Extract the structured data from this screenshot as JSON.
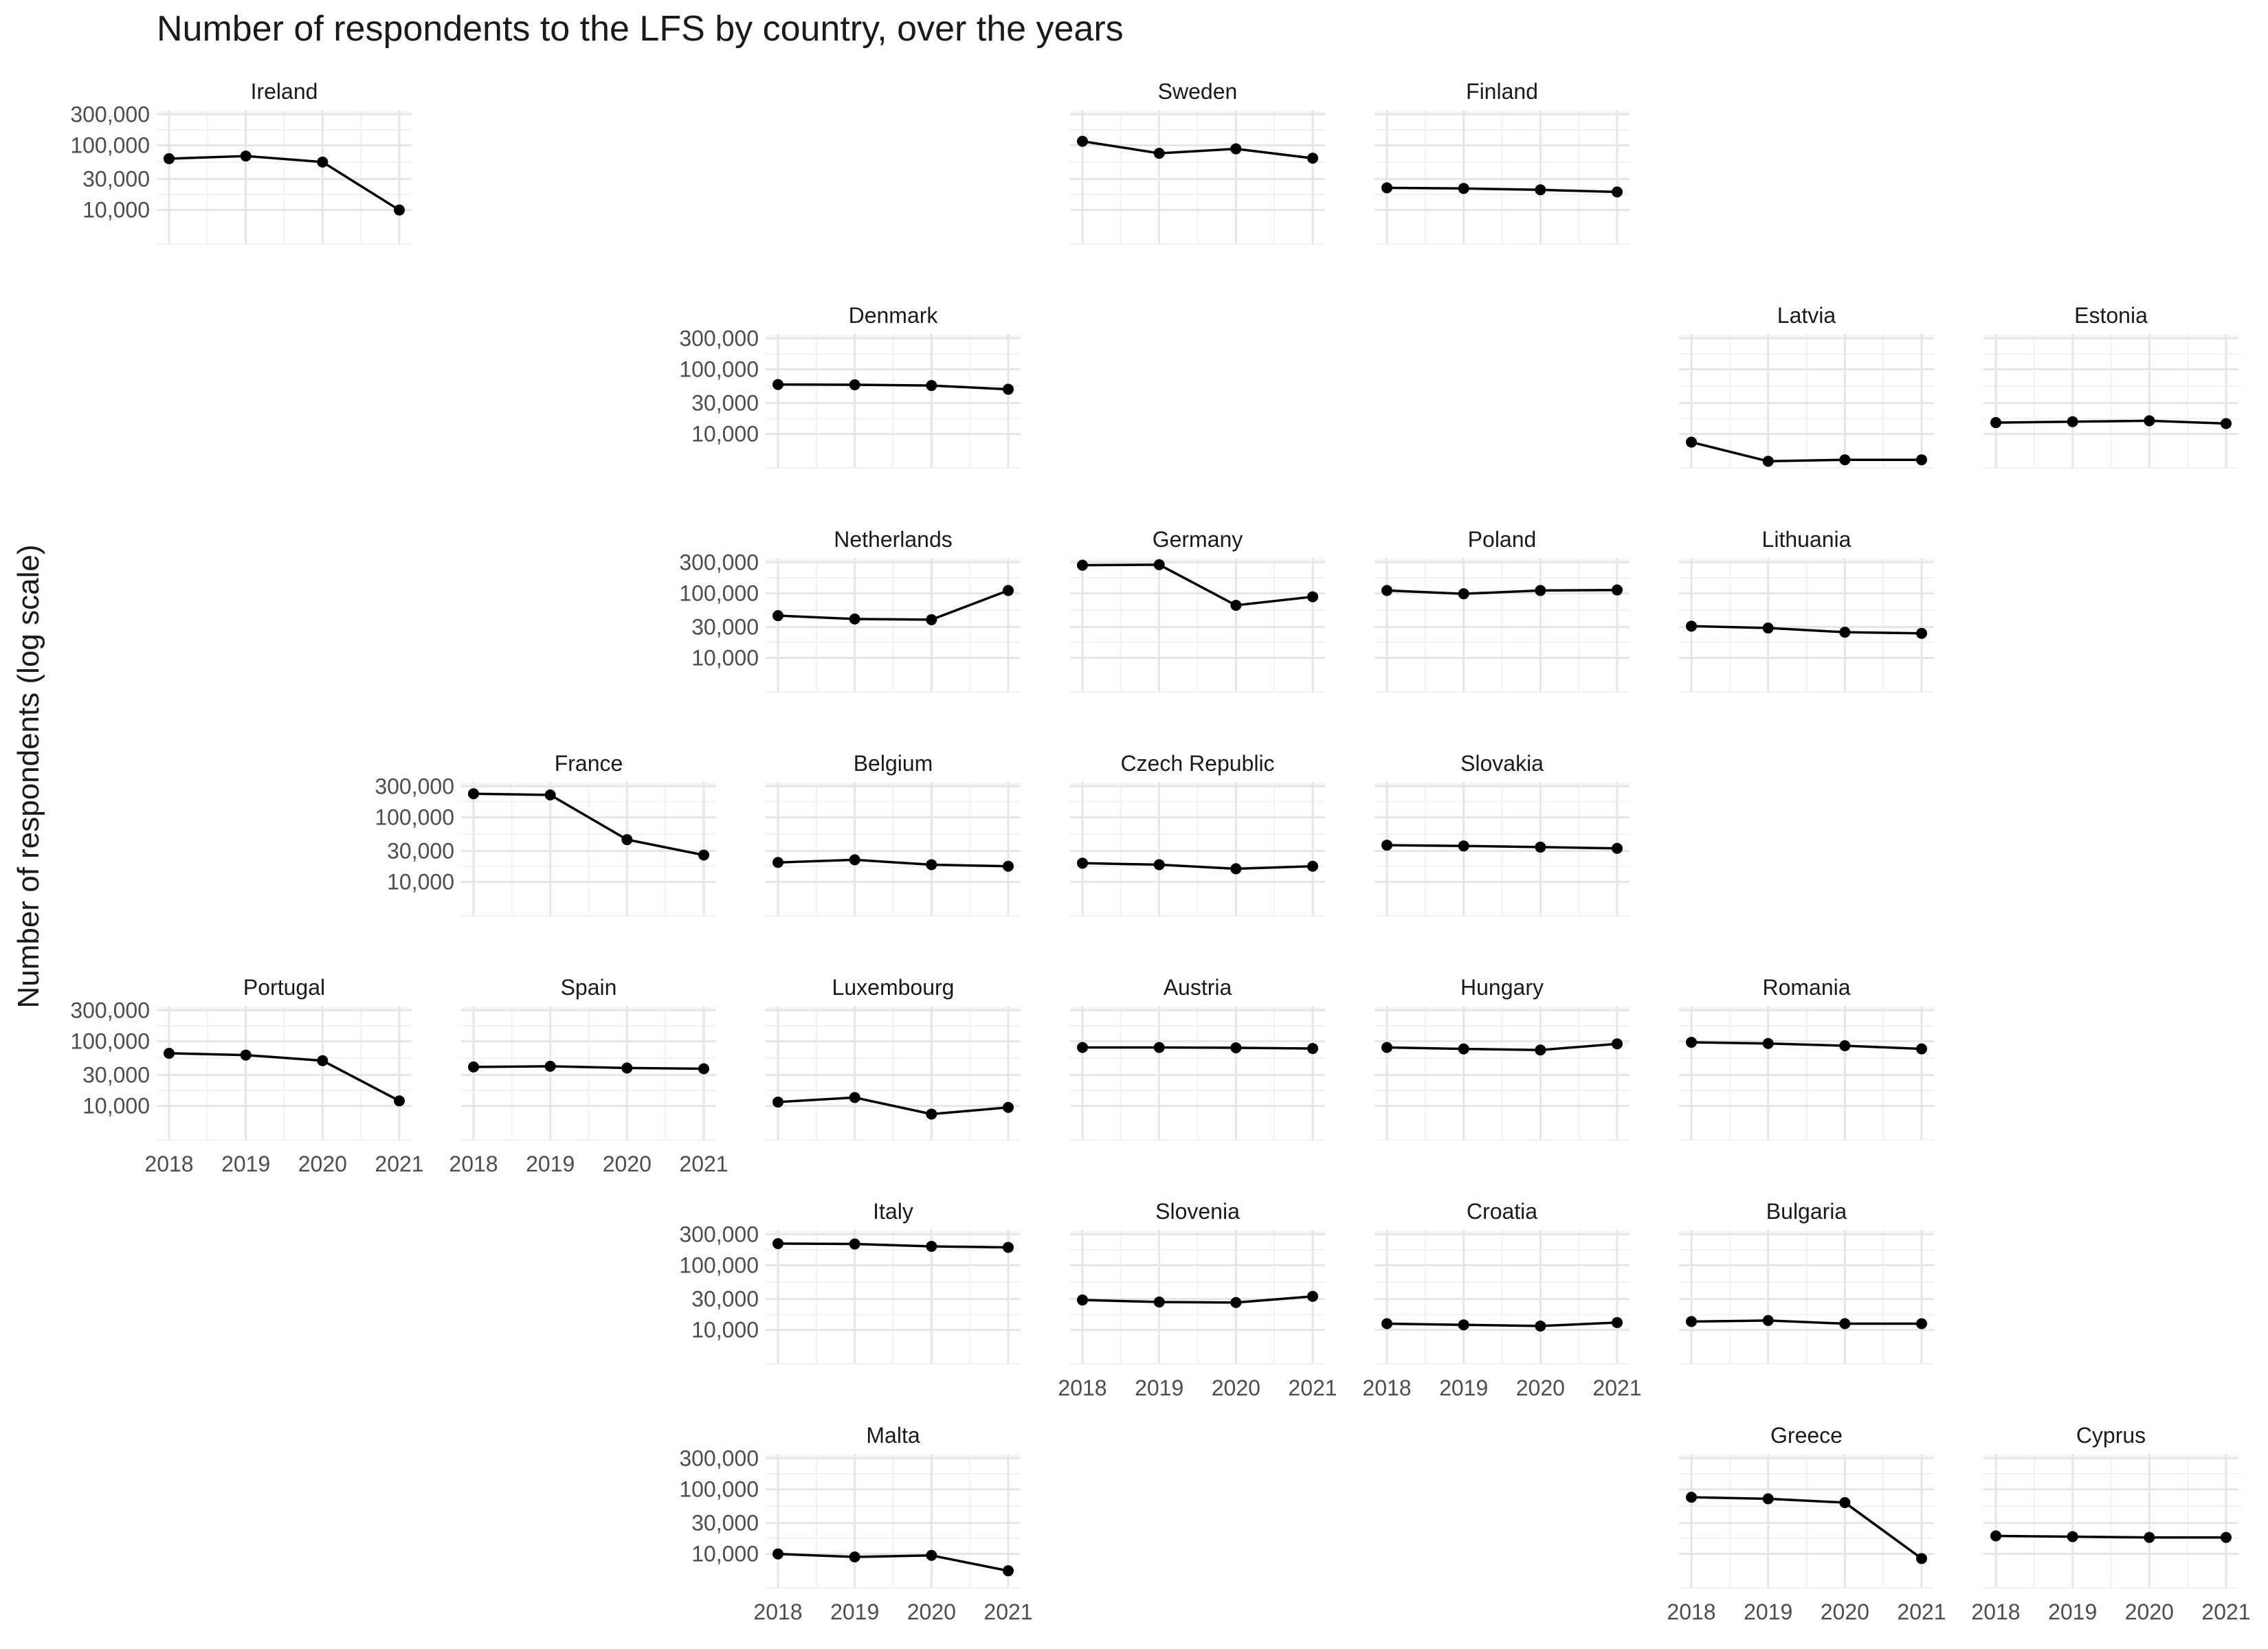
{
  "chart_data": {
    "type": "line",
    "title": "Number of respondents to the LFS by country, over the years",
    "ylabel": "Number of respondents (log scale)",
    "xlabel": "",
    "y_scale": "log10",
    "ylim": [
      3000,
      350000
    ],
    "x": [
      "2018",
      "2019",
      "2020",
      "2021"
    ],
    "y_ticks": [
      10000,
      30000,
      100000,
      300000
    ],
    "y_tick_labels": [
      "10,000",
      "30,000",
      "100,000",
      "300,000"
    ],
    "grid": true,
    "facets": [
      {
        "name": "Ireland",
        "row": 0,
        "col": 0,
        "values": [
          62000,
          68000,
          55000,
          10000
        ]
      },
      {
        "name": "Sweden",
        "row": 0,
        "col": 3,
        "values": [
          115000,
          75000,
          88000,
          63000
        ]
      },
      {
        "name": "Finland",
        "row": 0,
        "col": 4,
        "values": [
          22000,
          21500,
          20500,
          19000
        ]
      },
      {
        "name": "Denmark",
        "row": 1,
        "col": 2,
        "values": [
          58000,
          57500,
          56000,
          49000
        ]
      },
      {
        "name": "Latvia",
        "row": 1,
        "col": 5,
        "values": [
          7500,
          3800,
          4000,
          4000
        ]
      },
      {
        "name": "Estonia",
        "row": 1,
        "col": 6,
        "values": [
          15000,
          15500,
          16000,
          14500
        ]
      },
      {
        "name": "Netherlands",
        "row": 2,
        "col": 2,
        "values": [
          45000,
          40000,
          39000,
          110000
        ]
      },
      {
        "name": "Germany",
        "row": 2,
        "col": 3,
        "values": [
          270000,
          275000,
          65000,
          88000
        ]
      },
      {
        "name": "Poland",
        "row": 2,
        "col": 4,
        "values": [
          110000,
          98000,
          110000,
          112000
        ]
      },
      {
        "name": "Lithuania",
        "row": 2,
        "col": 5,
        "values": [
          31000,
          29000,
          25000,
          24000
        ]
      },
      {
        "name": "France",
        "row": 3,
        "col": 1,
        "values": [
          230000,
          220000,
          45000,
          26000
        ]
      },
      {
        "name": "Belgium",
        "row": 3,
        "col": 2,
        "values": [
          20000,
          22000,
          18500,
          17500
        ]
      },
      {
        "name": "Czech Republic",
        "row": 3,
        "col": 3,
        "values": [
          19500,
          18500,
          16000,
          17500
        ]
      },
      {
        "name": "Slovakia",
        "row": 3,
        "col": 4,
        "values": [
          37000,
          36000,
          34500,
          33000
        ]
      },
      {
        "name": "Portugal",
        "row": 4,
        "col": 0,
        "values": [
          65000,
          61000,
          50000,
          12000
        ]
      },
      {
        "name": "Spain",
        "row": 4,
        "col": 1,
        "values": [
          40000,
          41000,
          38500,
          37500
        ]
      },
      {
        "name": "Luxembourg",
        "row": 4,
        "col": 2,
        "values": [
          11500,
          13500,
          7500,
          9500
        ]
      },
      {
        "name": "Austria",
        "row": 4,
        "col": 3,
        "values": [
          80000,
          80000,
          79000,
          77000
        ]
      },
      {
        "name": "Hungary",
        "row": 4,
        "col": 4,
        "values": [
          80000,
          76000,
          73000,
          91000
        ]
      },
      {
        "name": "Romania",
        "row": 4,
        "col": 5,
        "values": [
          96000,
          92000,
          85000,
          76000
        ]
      },
      {
        "name": "Italy",
        "row": 5,
        "col": 2,
        "values": [
          215000,
          212000,
          195000,
          188000
        ]
      },
      {
        "name": "Slovenia",
        "row": 5,
        "col": 3,
        "values": [
          29000,
          27000,
          26500,
          33000
        ]
      },
      {
        "name": "Croatia",
        "row": 5,
        "col": 4,
        "values": [
          12500,
          12000,
          11500,
          13000
        ]
      },
      {
        "name": "Bulgaria",
        "row": 5,
        "col": 5,
        "values": [
          13500,
          14000,
          12500,
          12500
        ]
      },
      {
        "name": "Malta",
        "row": 6,
        "col": 2,
        "values": [
          10000,
          9000,
          9500,
          5500
        ]
      },
      {
        "name": "Greece",
        "row": 6,
        "col": 5,
        "values": [
          75000,
          71000,
          62000,
          8500
        ]
      },
      {
        "name": "Cyprus",
        "row": 6,
        "col": 6,
        "values": [
          19000,
          18500,
          18000,
          18000
        ]
      }
    ]
  }
}
